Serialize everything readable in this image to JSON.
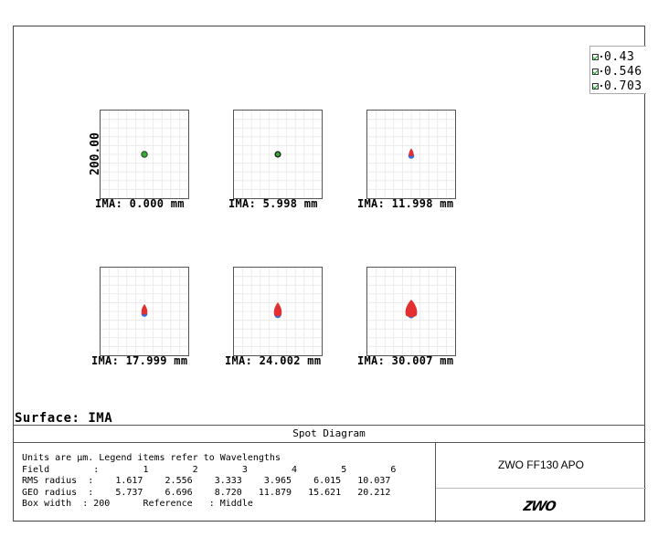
{
  "legend": [
    {
      "label": "0.43",
      "color": "#2e6fe6"
    },
    {
      "label": "0.546",
      "color": "#3aa83a"
    },
    {
      "label": "0.703",
      "color": "#e23030"
    }
  ],
  "scale_label": "200.00",
  "plots": [
    {
      "label": "IMA: 0.000 mm",
      "spot": "tiny-green"
    },
    {
      "label": "IMA: 5.998 mm",
      "spot": "tiny-black-green"
    },
    {
      "label": "IMA: 11.998 mm",
      "spot": "small-red-blue"
    },
    {
      "label": "IMA: 17.999 mm",
      "spot": "medium-red-blue"
    },
    {
      "label": "IMA: 24.002 mm",
      "spot": "large-red-blue"
    },
    {
      "label": "IMA: 30.007 mm",
      "spot": "xlarge-red"
    }
  ],
  "surface_label": "Surface: IMA",
  "diagram_title": "Spot Diagram",
  "info": {
    "units_line": "Units are µm. Legend items refer to Wavelengths",
    "field_label": "Field        :",
    "field_values": [
      "1",
      "2",
      "3",
      "4",
      "5",
      "6"
    ],
    "rms_label": "RMS radius  :",
    "rms_values": [
      "1.617",
      "2.556",
      "3.333",
      "3.965",
      "6.015",
      "10.037"
    ],
    "geo_label": "GEO radius  :",
    "geo_values": [
      "5.737",
      "6.696",
      "8.720",
      "11.879",
      "15.621",
      "20.212"
    ],
    "box_width_line": "Box width  : 200      Reference   : Middle"
  },
  "project_title": "ZWO FF130 APO",
  "logo_text": "zwo"
}
